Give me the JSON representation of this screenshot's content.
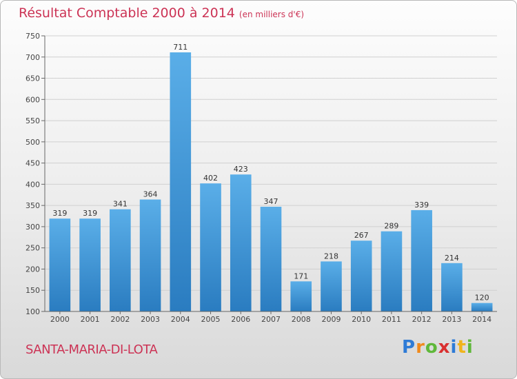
{
  "header": {
    "title": "Résultat Comptable 2000 à 2014",
    "subtitle": "(en milliers d'€)"
  },
  "footer": {
    "commune": "SANTA-MARIA-DI-LOTA",
    "logo": "Proxiti"
  },
  "colors": {
    "bar_top": "#5aaee8",
    "bar_bottom": "#2a7cc0",
    "title": "#cc3355"
  },
  "chart_data": {
    "type": "bar",
    "categories": [
      "2000",
      "2001",
      "2002",
      "2003",
      "2004",
      "2005",
      "2006",
      "2007",
      "2008",
      "2009",
      "2010",
      "2011",
      "2012",
      "2013",
      "2014"
    ],
    "values": [
      319,
      319,
      341,
      364,
      711,
      402,
      423,
      347,
      171,
      218,
      267,
      289,
      339,
      214,
      120
    ],
    "title": "Résultat Comptable 2000 à 2014",
    "subtitle": "(en milliers d'€)",
    "xlabel": "",
    "ylabel": "",
    "ylim": [
      100,
      750
    ],
    "yticks": [
      100,
      150,
      200,
      250,
      300,
      350,
      400,
      450,
      500,
      550,
      600,
      650,
      700,
      750
    ],
    "grid": true,
    "data_labels": true
  }
}
